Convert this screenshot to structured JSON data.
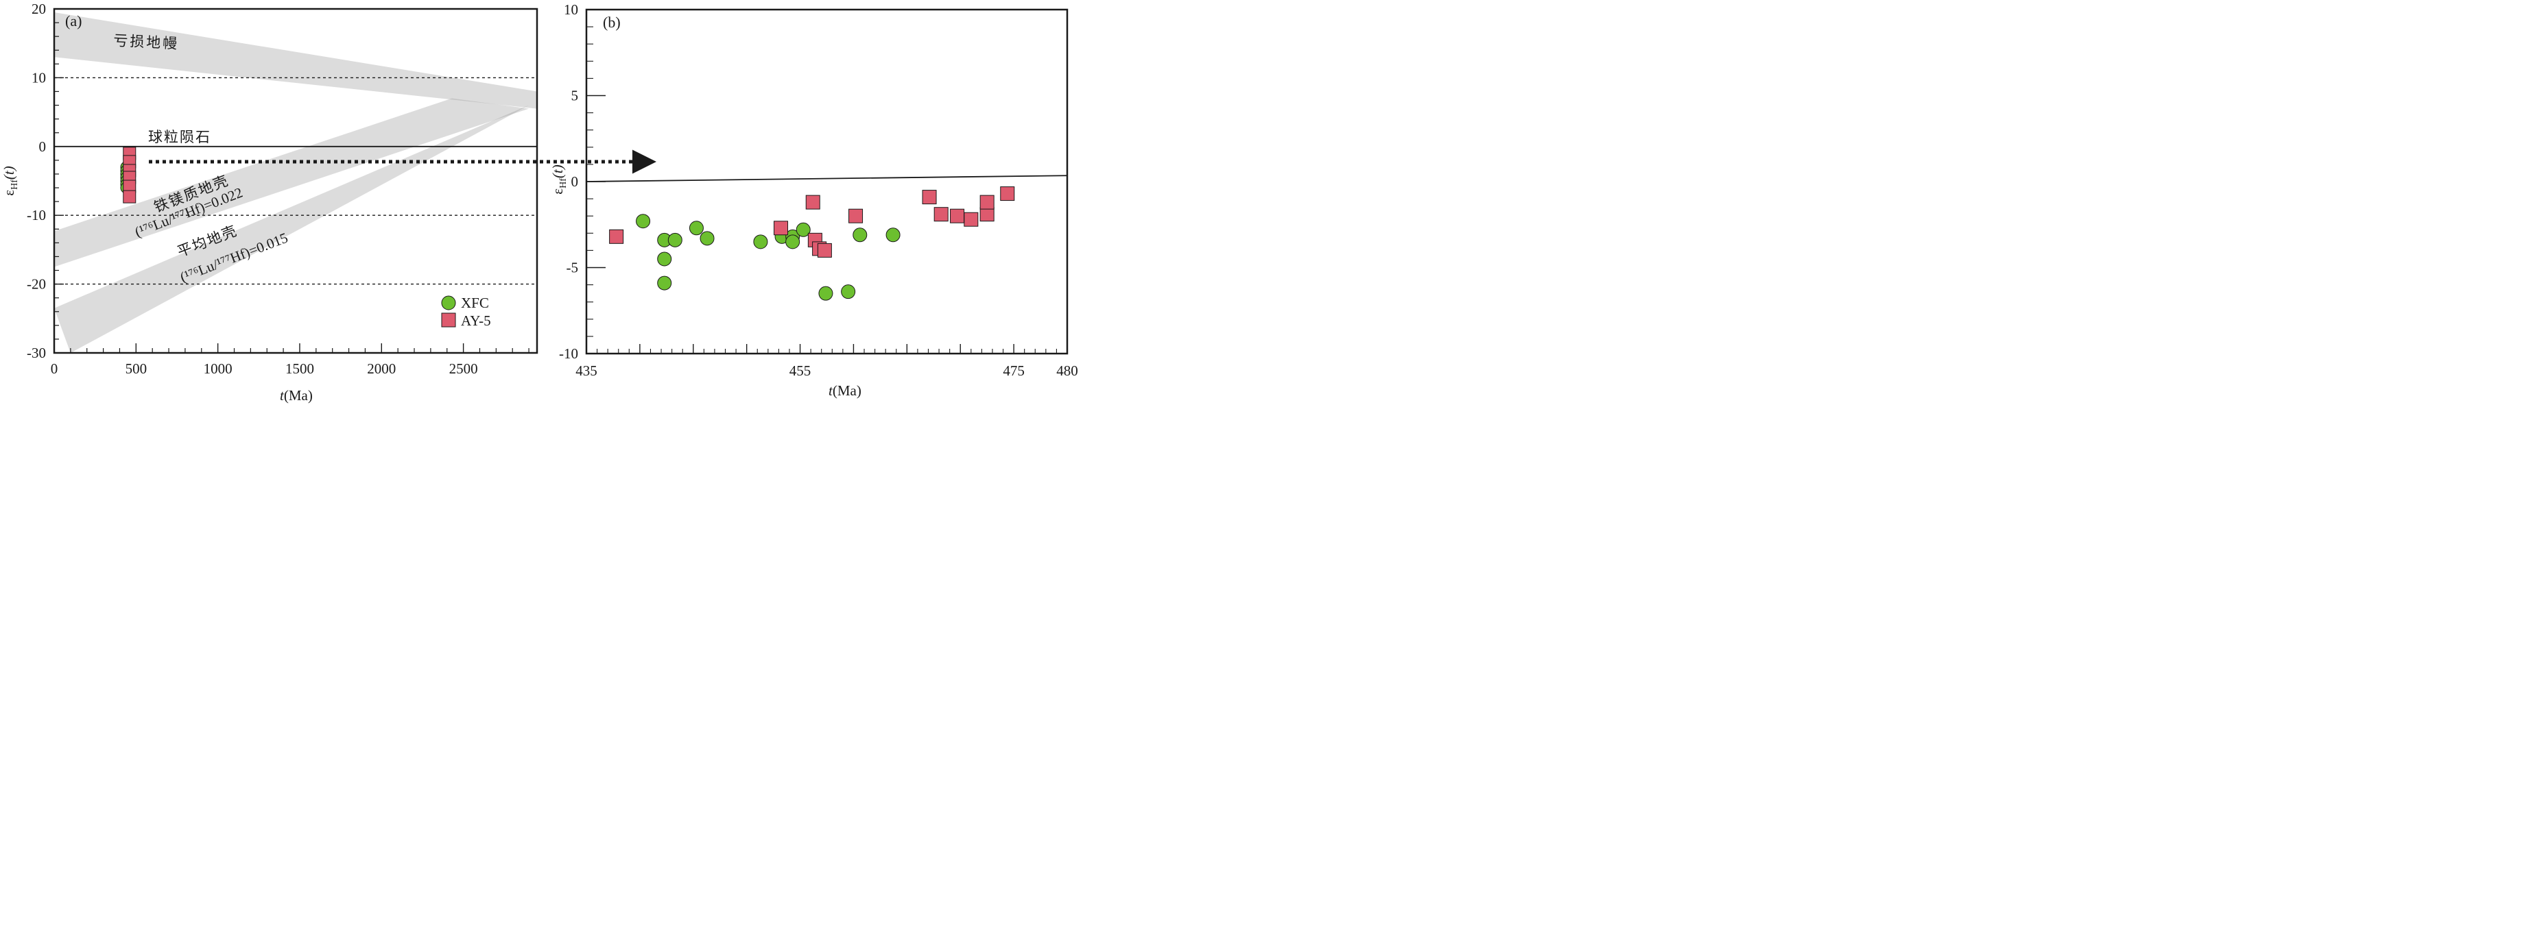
{
  "chart_data": [
    {
      "panel": "(a)",
      "type": "scatter",
      "xlabel_italic": "t",
      "xlabel_unit": "(Ma)",
      "ylabel_base": "ε",
      "ylabel_sub": "Hf",
      "ylabel_arg": "(t)",
      "xlim": [
        0,
        2950
      ],
      "ylim": [
        -30,
        20
      ],
      "xticks": [
        0,
        500,
        1000,
        1500,
        2000,
        2500
      ],
      "xtick_labels": [
        "0",
        "500",
        "1000",
        "1500",
        "2000",
        "2500"
      ],
      "yticks": [
        20,
        10,
        0,
        -10,
        -20,
        -30
      ],
      "ytick_labels": [
        "20",
        "10",
        "0",
        "-10",
        "-20",
        "-30"
      ],
      "dotted_lines": [
        10,
        -10,
        -20
      ],
      "chondrite_line": 0,
      "bands": [
        {
          "name": "depleted-mantle",
          "label": "亏损地幔",
          "upper": [
            [
              0,
              19.5
            ],
            [
              2950,
              8.0
            ]
          ],
          "lower": [
            [
              0,
              13.0
            ],
            [
              2950,
              5.5
            ]
          ]
        },
        {
          "name": "mafic-crust",
          "label_line1": "铁镁质地壳",
          "label_line2": "(¹⁷⁶Lu/¹⁷⁷Hf)=0.022",
          "upper": [
            [
              0,
              -12.3
            ],
            [
              2430,
              7.0
            ]
          ],
          "lower": [
            [
              0,
              -17.5
            ],
            [
              2900,
              5.5
            ]
          ]
        },
        {
          "name": "average-crust",
          "label_line1": "平均地壳",
          "label_line2": "(¹⁷⁶Lu/¹⁷⁷Hf)=0.015",
          "upper": [
            [
              0,
              -23.5
            ],
            [
              2900,
              6.0
            ]
          ],
          "lower": [
            [
              100,
              -30.0
            ],
            [
              2900,
              6.0
            ]
          ]
        }
      ],
      "chondrite_label": "球粒陨石",
      "series": [
        {
          "name": "XFC",
          "marker": "circle",
          "color": "#6cbf2f",
          "points": [
            [
              440,
              -3.0
            ],
            [
              440,
              -3.5
            ],
            [
              440,
              -4.0
            ],
            [
              440,
              -4.5
            ],
            [
              440,
              -5.0
            ],
            [
              440,
              -5.5
            ],
            [
              440,
              -6.0
            ]
          ]
        },
        {
          "name": "AY-5",
          "marker": "square",
          "color": "#de5a6e",
          "points": [
            [
              460,
              -1.0
            ],
            [
              460,
              -2.2
            ],
            [
              460,
              -3.5
            ],
            [
              460,
              -4.5
            ],
            [
              460,
              -5.8
            ],
            [
              460,
              -7.3
            ]
          ]
        }
      ],
      "legend_position": "bottom-right"
    },
    {
      "panel": "(b)",
      "type": "scatter",
      "xlabel_italic": "t",
      "xlabel_unit": "(Ma)",
      "ylabel_base": "ε",
      "ylabel_sub": "Hf",
      "ylabel_arg": "(t)",
      "xlim": [
        435,
        480
      ],
      "ylim": [
        -10,
        10
      ],
      "xtick_labels": [
        "435",
        "455",
        "475",
        "480"
      ],
      "xtick_values": [
        435,
        455,
        475,
        480
      ],
      "ytick_labels": [
        "10",
        "5",
        "0",
        "-5",
        "-10"
      ],
      "ytick_values": [
        10,
        5,
        0,
        -5,
        -10
      ],
      "chondrite_line": [
        [
          435,
          0.0
        ],
        [
          480,
          0.35
        ]
      ],
      "series": [
        {
          "name": "XFC",
          "marker": "circle",
          "color": "#6cbf2f",
          "points": [
            [
              440.3,
              -2.3
            ],
            [
              442.3,
              -3.4
            ],
            [
              443.3,
              -3.4
            ],
            [
              442.3,
              -4.5
            ],
            [
              442.3,
              -5.9
            ],
            [
              445.3,
              -2.7
            ],
            [
              446.3,
              -3.3
            ],
            [
              451.3,
              -3.5
            ],
            [
              453.3,
              -3.2
            ],
            [
              454.3,
              -3.2
            ],
            [
              454.3,
              -3.5
            ],
            [
              455.3,
              -2.8
            ],
            [
              457.4,
              -6.5
            ],
            [
              459.5,
              -6.4
            ],
            [
              460.6,
              -3.1
            ],
            [
              463.7,
              -3.1
            ]
          ]
        },
        {
          "name": "AY-5",
          "marker": "square",
          "color": "#de5a6e",
          "points": [
            [
              437.8,
              -3.2
            ],
            [
              453.2,
              -2.7
            ],
            [
              456.2,
              -1.2
            ],
            [
              456.4,
              -3.4
            ],
            [
              456.8,
              -3.9
            ],
            [
              457.3,
              -4.0
            ],
            [
              460.2,
              -2.0
            ],
            [
              467.1,
              -0.9
            ],
            [
              468.2,
              -1.9
            ],
            [
              469.7,
              -2.0
            ],
            [
              471.0,
              -2.2
            ],
            [
              472.5,
              -1.9
            ],
            [
              472.5,
              -1.2
            ],
            [
              474.4,
              -0.7
            ]
          ]
        }
      ]
    }
  ]
}
